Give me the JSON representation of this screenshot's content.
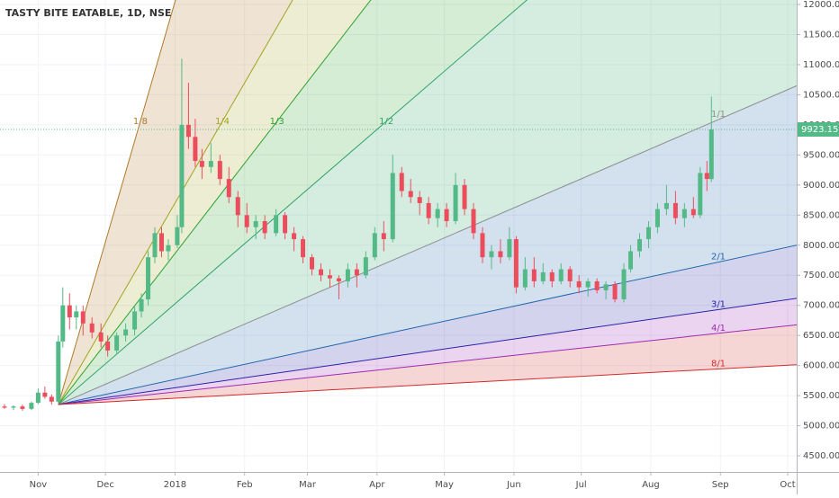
{
  "chart_data": {
    "type": "candlestick",
    "title": "TASTY BITE EATABLE, 1D, NSE",
    "up_color": "#53b987",
    "down_color": "#eb4d5c",
    "grid": true,
    "xlim": [
      -17,
      338
    ],
    "ylim": [
      4232,
      12075
    ],
    "xticks": [
      {
        "value": 0,
        "label": "Nov"
      },
      {
        "value": 30,
        "label": "Dec"
      },
      {
        "value": 61,
        "label": "2018"
      },
      {
        "value": 92,
        "label": "Feb"
      },
      {
        "value": 120,
        "label": "Mar"
      },
      {
        "value": 151,
        "label": "Apr"
      },
      {
        "value": 181,
        "label": "May"
      },
      {
        "value": 212,
        "label": "Jun"
      },
      {
        "value": 242,
        "label": "Jul"
      },
      {
        "value": 273,
        "label": "Aug"
      },
      {
        "value": 304,
        "label": "Sep"
      },
      {
        "value": 334,
        "label": "Oct"
      }
    ],
    "yticks": [
      {
        "value": 4500,
        "label": "4500.00"
      },
      {
        "value": 5000,
        "label": "5000.00"
      },
      {
        "value": 5500,
        "label": "5500.00"
      },
      {
        "value": 6000,
        "label": "6000.00"
      },
      {
        "value": 6500,
        "label": "6500.00"
      },
      {
        "value": 7000,
        "label": "7000.00"
      },
      {
        "value": 7500,
        "label": "7500.00"
      },
      {
        "value": 8000,
        "label": "8000.00"
      },
      {
        "value": 8500,
        "label": "8500.00"
      },
      {
        "value": 9000,
        "label": "9000.00"
      },
      {
        "value": 9500,
        "label": "9500.00"
      },
      {
        "value": 10000,
        "label": "10000.00"
      },
      {
        "value": 10500,
        "label": "10500.00"
      },
      {
        "value": 11000,
        "label": "11000.00"
      },
      {
        "value": 11500,
        "label": "11500.00"
      },
      {
        "value": 12000,
        "label": "12000.00"
      }
    ],
    "x": [
      -15,
      -11,
      -7,
      -3,
      0,
      3,
      6,
      9,
      11,
      14,
      17,
      20,
      24,
      28,
      31,
      35,
      39,
      43,
      46,
      49,
      52,
      55,
      58,
      62,
      64,
      67,
      70,
      73,
      77,
      81,
      85,
      89,
      93,
      97,
      101,
      106,
      110,
      114,
      118,
      122,
      126,
      130,
      134,
      138,
      142,
      146,
      150,
      154,
      158,
      162,
      166,
      170,
      174,
      178,
      182,
      186,
      190,
      194,
      198,
      202,
      206,
      210,
      213,
      217,
      221,
      225,
      229,
      233,
      237,
      241,
      245,
      249,
      253,
      257,
      261,
      264,
      268,
      272,
      276,
      280,
      284,
      288,
      292,
      295,
      298,
      300
    ],
    "open": [
      5320,
      5300,
      5320,
      5280,
      5380,
      5550,
      5480,
      5400,
      6400,
      7000,
      6800,
      6900,
      6700,
      6550,
      6400,
      6250,
      6500,
      6600,
      6900,
      7100,
      7800,
      8200,
      7900,
      8000,
      8300,
      10000,
      9800,
      9400,
      9300,
      9400,
      9100,
      8800,
      8500,
      8300,
      8400,
      8200,
      8500,
      8200,
      8100,
      7800,
      7600,
      7500,
      7450,
      7400,
      7600,
      7500,
      7800,
      8200,
      8100,
      9200,
      8900,
      8800,
      8700,
      8450,
      8600,
      8400,
      9000,
      8600,
      8200,
      7800,
      7900,
      7800,
      8100,
      7300,
      7600,
      7400,
      7550,
      7400,
      7600,
      7400,
      7300,
      7400,
      7250,
      7350,
      7100,
      7600,
      7900,
      8100,
      8300,
      8600,
      8700,
      8450,
      8600,
      8500,
      9200,
      9100
    ],
    "high": [
      5360,
      5340,
      5350,
      5400,
      5620,
      5650,
      5520,
      6500,
      7300,
      7200,
      7000,
      7000,
      6800,
      6700,
      6500,
      6550,
      6700,
      7000,
      7200,
      7900,
      8300,
      8300,
      8100,
      8500,
      11100,
      10700,
      10100,
      9600,
      9700,
      9500,
      9300,
      8900,
      8700,
      8500,
      8500,
      8600,
      8550,
      8300,
      8150,
      7850,
      7700,
      7600,
      7500,
      7700,
      7700,
      7900,
      8300,
      8400,
      9500,
      9300,
      9100,
      8900,
      8800,
      8700,
      8700,
      9200,
      9100,
      8700,
      8300,
      8000,
      8100,
      8300,
      8150,
      7800,
      7800,
      7700,
      7600,
      7700,
      7650,
      7500,
      7450,
      7450,
      7400,
      7400,
      7700,
      8000,
      8200,
      8400,
      8700,
      9000,
      8900,
      8700,
      8800,
      9300,
      9400,
      10470
    ],
    "low": [
      5280,
      5260,
      5250,
      5260,
      5360,
      5450,
      5350,
      5380,
      6300,
      6600,
      6600,
      6500,
      6450,
      6300,
      6150,
      6200,
      6400,
      6500,
      6800,
      7000,
      7700,
      7800,
      7750,
      7950,
      8200,
      9600,
      9300,
      9100,
      9200,
      9000,
      8700,
      8300,
      8200,
      8100,
      8100,
      8150,
      8100,
      7900,
      7700,
      7500,
      7400,
      7300,
      7100,
      7300,
      7300,
      7450,
      7750,
      7900,
      8050,
      8800,
      8700,
      8500,
      8350,
      8300,
      8300,
      8350,
      8500,
      8100,
      7700,
      7600,
      7700,
      7750,
      7200,
      7250,
      7300,
      7350,
      7300,
      7350,
      7300,
      7200,
      7150,
      7200,
      7100,
      7050,
      7050,
      7550,
      7800,
      7950,
      8200,
      8500,
      8350,
      8300,
      8450,
      8450,
      8900,
      9050
    ],
    "close": [
      5300,
      5320,
      5280,
      5380,
      5550,
      5480,
      5400,
      6400,
      7000,
      6800,
      6900,
      6700,
      6550,
      6400,
      6250,
      6500,
      6600,
      6900,
      7100,
      7800,
      8200,
      7900,
      8000,
      8300,
      10000,
      9800,
      9400,
      9300,
      9400,
      9100,
      8800,
      8500,
      8300,
      8400,
      8200,
      8500,
      8200,
      8100,
      7800,
      7600,
      7500,
      7450,
      7400,
      7600,
      7500,
      7800,
      8200,
      8100,
      9200,
      8900,
      8800,
      8700,
      8450,
      8600,
      8400,
      9000,
      8600,
      8200,
      7800,
      7900,
      7800,
      8100,
      7300,
      7600,
      7400,
      7550,
      7400,
      7600,
      7400,
      7300,
      7400,
      7250,
      7350,
      7100,
      7600,
      7900,
      8100,
      8300,
      8600,
      8700,
      8450,
      8600,
      8500,
      9200,
      9100,
      9923.15
    ],
    "last_color": "#53b987",
    "fan": {
      "origin_x": 9,
      "origin_y": 5352,
      "slope": 16.1,
      "levels": [
        {
          "label": "1/8",
          "ratio": 8,
          "color": "#b07a2a"
        },
        {
          "label": "1/4",
          "ratio": 4,
          "color": "#9fa51e"
        },
        {
          "label": "1/3",
          "ratio": 3,
          "color": "#2ea12e"
        },
        {
          "label": "1/2",
          "ratio": 2,
          "color": "#2ea36a"
        },
        {
          "label": "1/1",
          "ratio": 1,
          "color": "#8c8c8c"
        },
        {
          "label": "2/1",
          "ratio": 0.5,
          "color": "#2167ad"
        },
        {
          "label": "3/1",
          "ratio": 0.3333,
          "color": "#2a21a8"
        },
        {
          "label": "4/1",
          "ratio": 0.25,
          "color": "#9c2ab4"
        },
        {
          "label": "8/1",
          "ratio": 0.125,
          "color": "#d22b2b"
        }
      ]
    }
  }
}
